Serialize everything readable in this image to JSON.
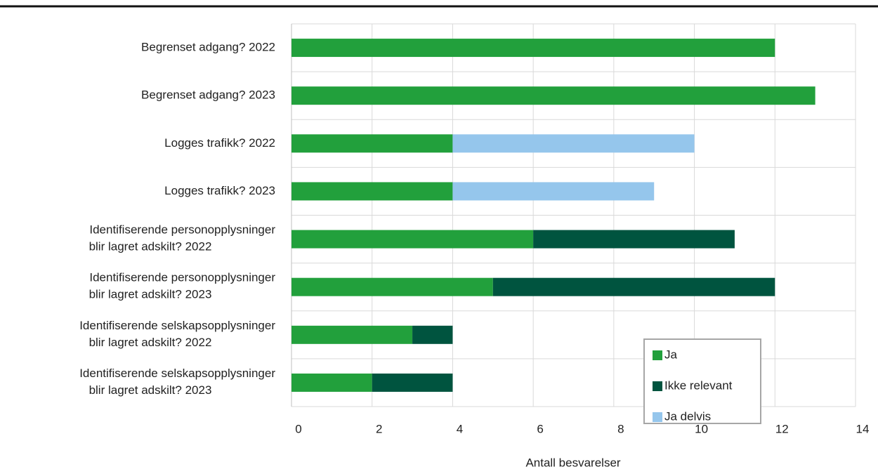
{
  "chart_data": {
    "type": "stacked_barh",
    "x_label": "Antall besvarelser",
    "categories": [
      "Begrenset adgang? 2022",
      "Begrenset adgang? 2023",
      "Logges trafikk? 2022",
      "Logges trafikk? 2023",
      "Identifiserende personopplysninger blir lagret adskilt? 2022",
      "Identifiserende personopplysninger blir lagret adskilt? 2023",
      "Identifiserende selskapsopplysninger blir lagret adskilt? 2022",
      "Identifiserende selskapsopplysninger blir lagret adskilt? 2023"
    ],
    "series": [
      {
        "name": "Ja",
        "color": "#22a03c",
        "values": [
          12,
          13,
          4,
          4,
          6,
          5,
          3,
          2
        ]
      },
      {
        "name": "Ikke relevant",
        "color": "#00543f",
        "values": [
          0,
          0,
          0,
          0,
          5,
          7,
          1,
          2
        ]
      },
      {
        "name": "Ja delvis",
        "color": "#95c6ec",
        "values": [
          0,
          0,
          6,
          5,
          0,
          0,
          0,
          0
        ]
      }
    ],
    "xlim": [
      0,
      14
    ],
    "xticks": [
      0,
      2,
      4,
      6,
      8,
      10,
      12,
      14
    ],
    "grid": true,
    "legend": "lower right"
  }
}
